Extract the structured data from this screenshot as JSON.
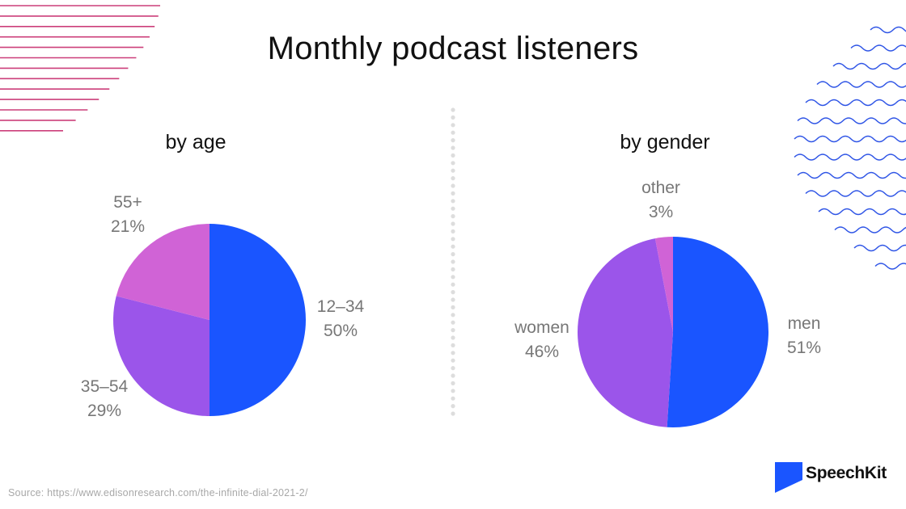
{
  "title": "Monthly podcast listeners",
  "source": "Source: https://www.edisonresearch.com/the-infinite-dial-2021-2/",
  "brand": {
    "name": "SpeechKit",
    "logo_icon": "speechkit-logo-icon",
    "logo_color": "#1a55ff"
  },
  "colors": {
    "blue": "#1a55ff",
    "purple": "#9b55ea",
    "pink": "#d063d6",
    "label": "#777777",
    "deco_lines": "#cc3f7a",
    "deco_waves": "#2f55e6",
    "divider": "#dddddd"
  },
  "chart_data": [
    {
      "type": "pie",
      "title": "by age",
      "slices": [
        {
          "label": "12–34",
          "value": 50,
          "value_label": "50%",
          "color": "#1a55ff"
        },
        {
          "label": "35–54",
          "value": 29,
          "value_label": "29%",
          "color": "#9b55ea"
        },
        {
          "label": "55+",
          "value": 21,
          "value_label": "21%",
          "color": "#d063d6"
        }
      ]
    },
    {
      "type": "pie",
      "title": "by gender",
      "slices": [
        {
          "label": "men",
          "value": 51,
          "value_label": "51%",
          "color": "#1a55ff"
        },
        {
          "label": "women",
          "value": 46,
          "value_label": "46%",
          "color": "#9b55ea"
        },
        {
          "label": "other",
          "value": 3,
          "value_label": "3%",
          "color": "#d063d6"
        }
      ]
    }
  ]
}
